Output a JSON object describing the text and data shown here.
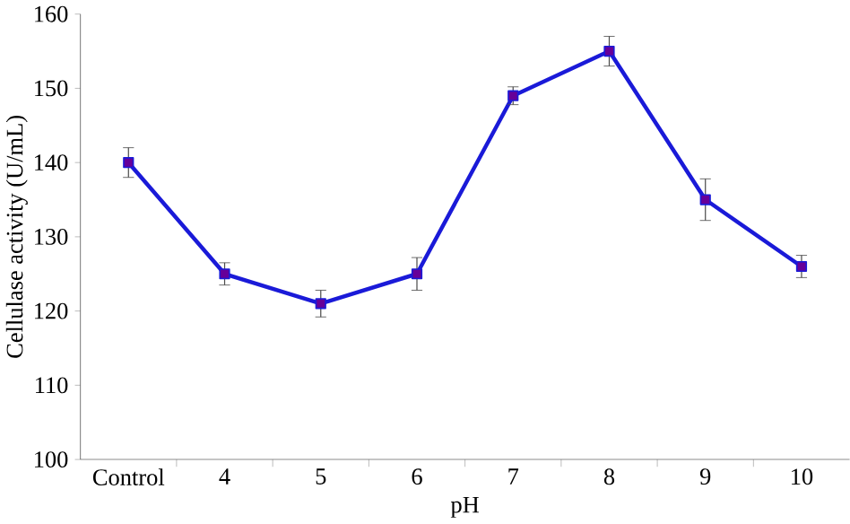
{
  "chart_data": {
    "type": "line",
    "xlabel": "pH",
    "ylabel": "Cellulase activity (U/mL)",
    "categories": [
      "Control",
      "4",
      "5",
      "6",
      "7",
      "8",
      "9",
      "10"
    ],
    "series": [
      {
        "color": "#1a1ad8",
        "values": [
          140,
          125,
          121,
          125,
          149,
          155,
          135,
          126
        ],
        "errors": [
          2,
          1.5,
          1.8,
          2.2,
          1.2,
          2,
          2.8,
          1.5
        ]
      }
    ],
    "ylim": [
      100,
      160
    ],
    "yticks": [
      100,
      110,
      120,
      130,
      140,
      150,
      160
    ],
    "marker": "square",
    "line_style": "solid"
  }
}
